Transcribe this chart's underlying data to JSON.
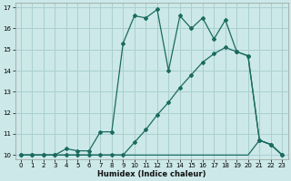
{
  "xlabel": "Humidex (Indice chaleur)",
  "xlim": [
    -0.5,
    23.5
  ],
  "ylim": [
    9.8,
    17.2
  ],
  "yticks": [
    10,
    11,
    12,
    13,
    14,
    15,
    16,
    17
  ],
  "xticks": [
    0,
    1,
    2,
    3,
    4,
    5,
    6,
    7,
    8,
    9,
    10,
    11,
    12,
    13,
    14,
    15,
    16,
    17,
    18,
    19,
    20,
    21,
    22,
    23
  ],
  "bg_color": "#cce8e8",
  "grid_color": "#aacfcf",
  "line_color": "#1a6b60",
  "curve1_x": [
    0,
    1,
    2,
    3,
    4,
    5,
    6,
    7,
    8,
    9,
    10,
    11,
    12,
    13,
    14,
    15,
    16,
    17,
    18,
    19,
    20,
    21,
    22,
    23
  ],
  "curve1_y": [
    10,
    10,
    10,
    10,
    10.3,
    10.2,
    10.2,
    11.1,
    11.1,
    15.3,
    16.6,
    16.5,
    16.9,
    14.0,
    16.6,
    16.0,
    16.5,
    15.5,
    16.4,
    14.9,
    14.7,
    10.7,
    10.5,
    10.0
  ],
  "curve2_x": [
    0,
    1,
    2,
    3,
    4,
    5,
    6,
    7,
    8,
    9,
    10,
    11,
    12,
    13,
    14,
    15,
    16,
    17,
    18,
    19,
    20,
    21,
    22,
    23
  ],
  "curve2_y": [
    10,
    10,
    10,
    10,
    10,
    10,
    10,
    10,
    10,
    10,
    10.6,
    11.2,
    11.9,
    12.5,
    13.2,
    13.8,
    14.4,
    14.8,
    15.1,
    14.9,
    14.7,
    10.7,
    10.5,
    10.0
  ],
  "curve3_x": [
    0,
    1,
    2,
    3,
    4,
    5,
    6,
    7,
    8,
    9,
    10,
    11,
    12,
    13,
    14,
    15,
    16,
    17,
    18,
    19,
    20,
    21,
    22,
    23
  ],
  "curve3_y": [
    10,
    10,
    10,
    10,
    10,
    10,
    10,
    10,
    10,
    10,
    10,
    10,
    10,
    10,
    10,
    10,
    10,
    10,
    10,
    10,
    10,
    10.7,
    10.5,
    10.0
  ]
}
